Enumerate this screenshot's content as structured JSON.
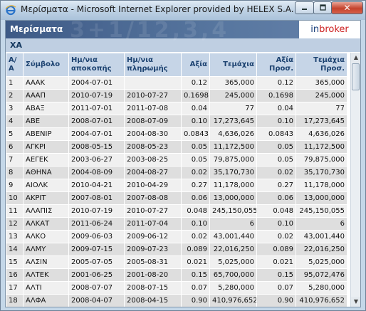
{
  "window": {
    "title": "Μερίσματα - Microsoft Internet Explorer provided by HELEX S.A."
  },
  "banner": {
    "title": "Μερίσματα",
    "logo_part1": "in",
    "logo_part2": "broker",
    "deco_text": "3+1/12,3,4"
  },
  "section": {
    "label": "ΧΑ"
  },
  "table": {
    "headers": [
      "Α/Α",
      "Σύμβολο",
      "Ημ/νια αποκοπής",
      "Ημ/νια πληρωμής",
      "Αξία",
      "Τεμάχια",
      "Αξία Προσ.",
      "Τεμάχια Προσ."
    ],
    "rows": [
      [
        "1",
        "ΑΑΑΚ",
        "2004-07-01",
        "",
        "0.12",
        "365,000",
        "0.12",
        "365,000"
      ],
      [
        "2",
        "ΑΑΑΠ",
        "2010-07-19",
        "2010-07-27",
        "0.1698",
        "245,000",
        "0.1698",
        "245,000"
      ],
      [
        "3",
        "ΑΒΑΞ",
        "2011-07-01",
        "2011-07-08",
        "0.04",
        "77",
        "0.04",
        "77"
      ],
      [
        "4",
        "ΑΒΕ",
        "2008-07-01",
        "2008-07-09",
        "0.10",
        "17,273,645",
        "0.10",
        "17,273,645"
      ],
      [
        "5",
        "ΑΒΕΝΙΡ",
        "2004-07-01",
        "2004-08-30",
        "0.0843",
        "4,636,026",
        "0.0843",
        "4,636,026"
      ],
      [
        "6",
        "ΑΓΚΡΙ",
        "2008-05-15",
        "2008-05-23",
        "0.05",
        "11,172,500",
        "0.05",
        "11,172,500"
      ],
      [
        "7",
        "ΑΕΓΕΚ",
        "2003-06-27",
        "2003-08-25",
        "0.05",
        "79,875,000",
        "0.05",
        "79,875,000"
      ],
      [
        "8",
        "ΑΘΗΝΑ",
        "2004-08-09",
        "2004-08-27",
        "0.02",
        "35,170,730",
        "0.02",
        "35,170,730"
      ],
      [
        "9",
        "ΑΙΟΛΚ",
        "2010-04-21",
        "2010-04-29",
        "0.27",
        "11,178,000",
        "0.27",
        "11,178,000"
      ],
      [
        "10",
        "ΑΚΡΙΤ",
        "2007-08-01",
        "2007-08-08",
        "0.06",
        "13,000,000",
        "0.06",
        "13,000,000"
      ],
      [
        "11",
        "ΑΛΑΠΙΣ",
        "2010-07-19",
        "2010-07-27",
        "0.048",
        "245,150,055",
        "0.048",
        "245,150,055"
      ],
      [
        "12",
        "ΑΛΚΑΤ",
        "2011-06-24",
        "2011-07-04",
        "0.10",
        "6",
        "0.10",
        "6"
      ],
      [
        "13",
        "ΑΛΚΟ",
        "2009-06-03",
        "2009-06-12",
        "0.02",
        "43,001,440",
        "0.02",
        "43,001,440"
      ],
      [
        "14",
        "ΑΛΜΥ",
        "2009-07-15",
        "2009-07-23",
        "0.089",
        "22,016,250",
        "0.089",
        "22,016,250"
      ],
      [
        "15",
        "ΑΛΣΙΝ",
        "2005-07-05",
        "2005-08-31",
        "0.021",
        "5,025,000",
        "0.021",
        "5,025,000"
      ],
      [
        "16",
        "ΑΛΤΕΚ",
        "2001-06-25",
        "2001-08-20",
        "0.15",
        "65,700,000",
        "0.15",
        "95,072,476"
      ],
      [
        "17",
        "ΑΛΤΙ",
        "2008-07-07",
        "2008-07-15",
        "0.07",
        "5,280,000",
        "0.07",
        "5,280,000"
      ],
      [
        "18",
        "ΑΛΦΑ",
        "2008-04-07",
        "2008-04-15",
        "0.90",
        "410,976,652",
        "0.90",
        "410,976,652"
      ]
    ]
  },
  "colors": {
    "banner": "#3e5a86",
    "header_bg": "#c6d5e7",
    "header_text": "#1c4270",
    "row_odd": "#f0f0f0",
    "row_even": "#dedede",
    "logo_in": "#1a3f7a",
    "logo_broker": "#cc1f1f"
  }
}
